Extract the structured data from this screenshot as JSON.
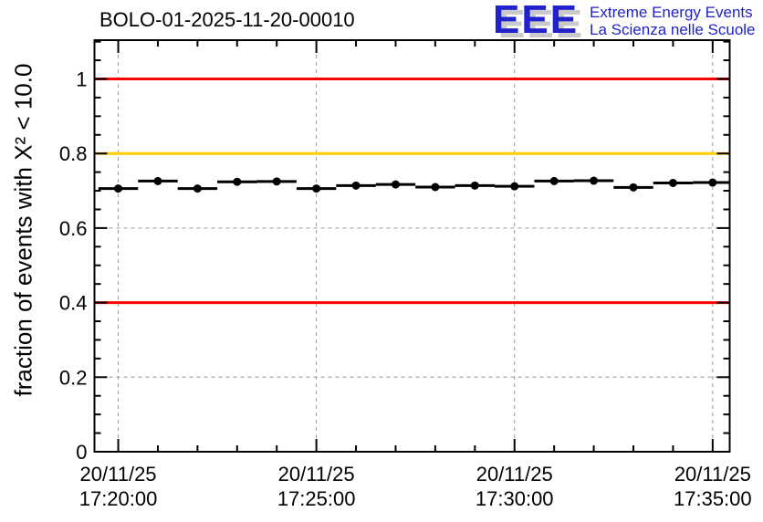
{
  "header": {
    "logo": {
      "letters": "EEE",
      "line1": "Extreme Energy Events",
      "line2": "La Scienza nelle Scuole",
      "color": "#2222cc",
      "shadow_color": "#c9c9c9"
    }
  },
  "chart_data": {
    "type": "scatter",
    "title": "BOLO-01-2025-11-20-00010",
    "xlabel": "",
    "ylabel": "fraction of events with X² < 10.0",
    "ylim": [
      0,
      1.104
    ],
    "xlim_minutes": [
      -0.6,
      15.43
    ],
    "grid": {
      "show": true,
      "color": "#999999",
      "dash": "4 4"
    },
    "axis_color": "#000000",
    "y_major_ticks": [
      {
        "value": 0,
        "label": "0"
      },
      {
        "value": 0.2,
        "label": "0.2"
      },
      {
        "value": 0.4,
        "label": "0.4"
      },
      {
        "value": 0.6,
        "label": "0.6"
      },
      {
        "value": 0.8,
        "label": "0.8"
      },
      {
        "value": 1.0,
        "label": "1"
      }
    ],
    "y_minor_step": 0.05,
    "x_major_ticks": [
      {
        "minute": 0,
        "date": "20/11/25",
        "time": "17:20:00"
      },
      {
        "minute": 5,
        "date": "20/11/25",
        "time": "17:25:00"
      },
      {
        "minute": 10,
        "date": "20/11/25",
        "time": "17:30:00"
      },
      {
        "minute": 15,
        "date": "20/11/25",
        "time": "17:35:00"
      }
    ],
    "x_minor_step_minutes": 1,
    "reference_lines": [
      {
        "y": 1.0,
        "color": "#ff0000"
      },
      {
        "y": 0.8,
        "color": "#ffcc00"
      },
      {
        "y": 0.4,
        "color": "#ff0000"
      }
    ],
    "series": [
      {
        "name": "fraction of events with X² < 10.0",
        "marker": "filled-circle",
        "color": "#000000",
        "xerr_minutes": 0.5,
        "x_minutes": [
          0,
          1,
          2,
          3,
          4,
          5,
          6,
          7,
          8,
          9,
          10,
          11,
          12,
          13,
          14,
          15
        ],
        "x_times": [
          "17:20:00",
          "17:21:00",
          "17:22:00",
          "17:23:00",
          "17:24:00",
          "17:25:00",
          "17:26:00",
          "17:27:00",
          "17:28:00",
          "17:29:00",
          "17:30:00",
          "17:31:00",
          "17:32:00",
          "17:33:00",
          "17:34:00",
          "17:35:00"
        ],
        "y": [
          0.706,
          0.726,
          0.706,
          0.724,
          0.725,
          0.706,
          0.714,
          0.717,
          0.71,
          0.714,
          0.712,
          0.726,
          0.727,
          0.709,
          0.721,
          0.722
        ]
      }
    ]
  }
}
